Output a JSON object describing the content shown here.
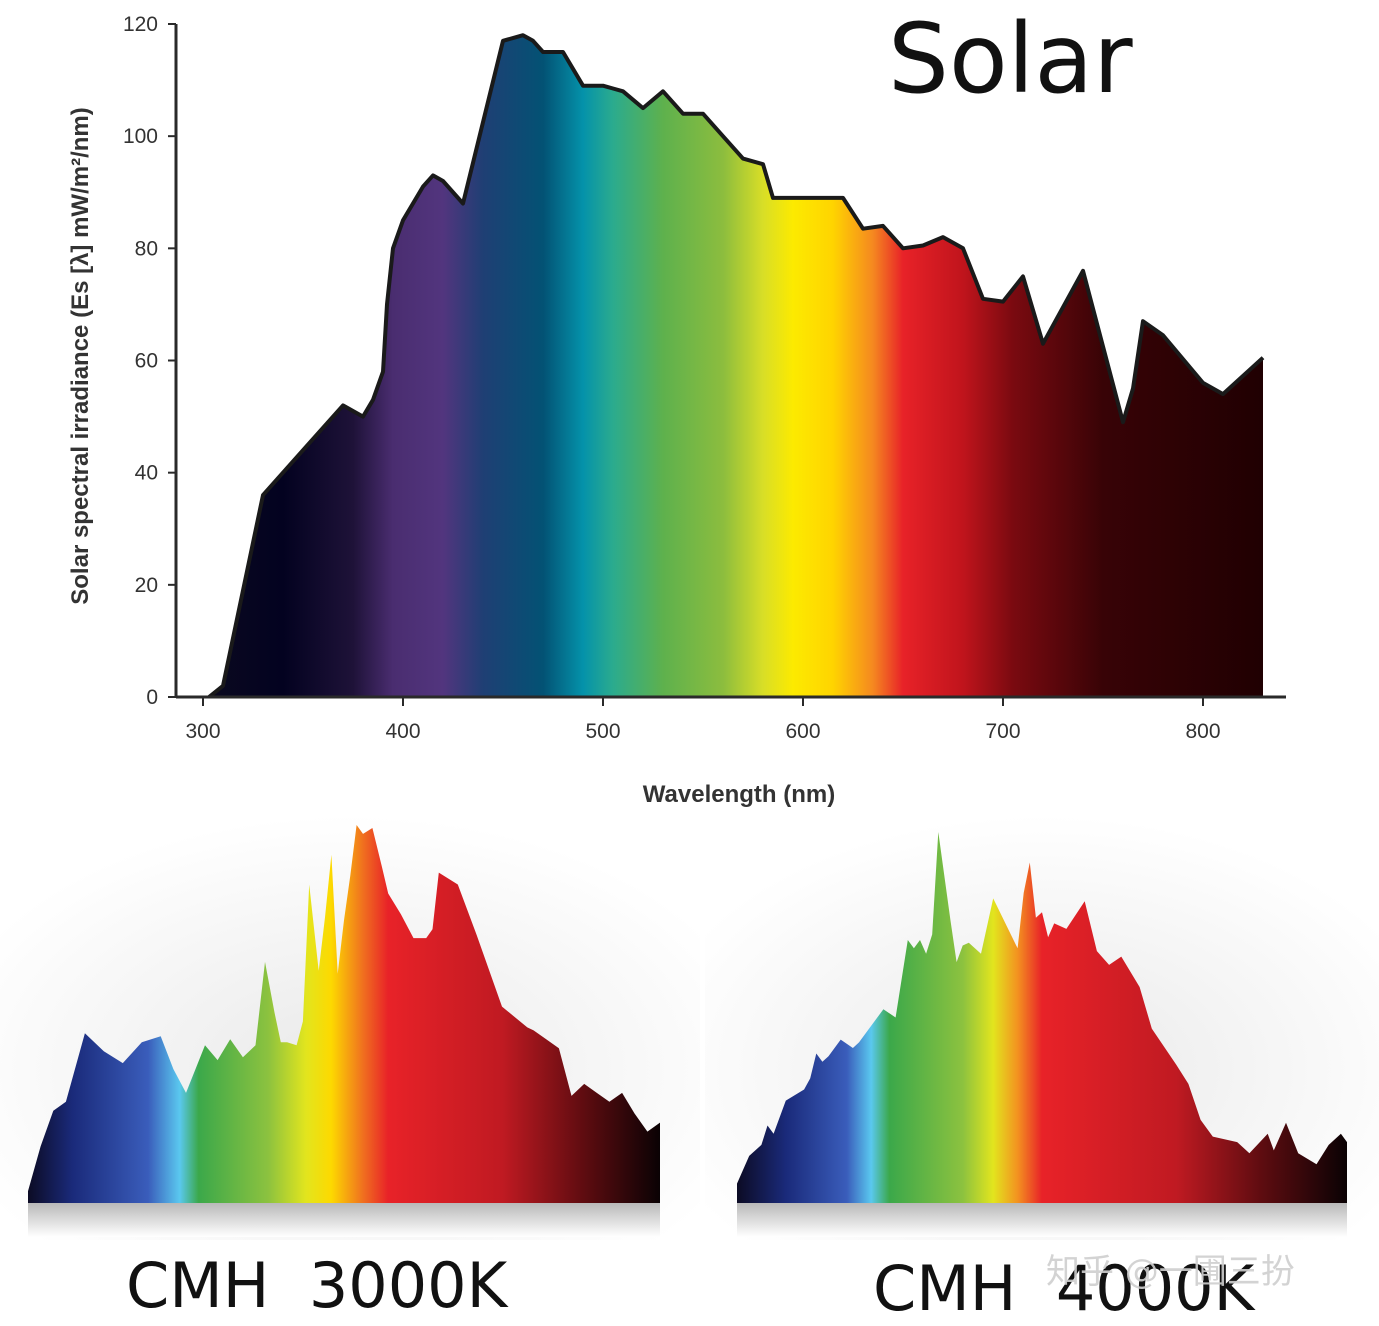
{
  "watermark": "知乎 @一圃三扮",
  "chart_data": [
    {
      "type": "area",
      "title": "Solar",
      "xlabel": "Wavelength (nm)",
      "ylabel": "Solar spectral irradiance  (Es [λ] mW/m²/nm)",
      "xlim": [
        290,
        840
      ],
      "ylim": [
        0,
        120
      ],
      "xticks": [
        300,
        400,
        500,
        600,
        700,
        800
      ],
      "yticks": [
        0,
        20,
        40,
        60,
        80,
        100,
        120
      ],
      "series": [
        {
          "name": "Solar",
          "x": [
            303,
            310,
            330,
            350,
            370,
            380,
            385,
            390,
            392,
            395,
            400,
            410,
            415,
            420,
            430,
            450,
            460,
            465,
            470,
            480,
            490,
            500,
            505,
            510,
            520,
            530,
            540,
            550,
            560,
            570,
            580,
            585,
            590,
            600,
            620,
            630,
            640,
            650,
            660,
            670,
            680,
            690,
            700,
            710,
            720,
            740,
            760,
            765,
            770,
            780,
            800,
            810,
            830
          ],
          "y": [
            0,
            2,
            36,
            44,
            52,
            50,
            53,
            58,
            70,
            80,
            85,
            91,
            93,
            92,
            88,
            117,
            118,
            117,
            115,
            115,
            109,
            109,
            108.5,
            108,
            105,
            108,
            104,
            104,
            100,
            96,
            95,
            89,
            89,
            89,
            89,
            83.5,
            84,
            80,
            80.5,
            82,
            80,
            71,
            70.5,
            75,
            63,
            76,
            49,
            55,
            67,
            64.5,
            56,
            54,
            60.5
          ]
        }
      ],
      "color_scale": [
        {
          "nm": 300,
          "color": "#0b0a1f"
        },
        {
          "nm": 340,
          "color": "#030220"
        },
        {
          "nm": 375,
          "color": "#1e1238"
        },
        {
          "nm": 395,
          "color": "#4a2d70"
        },
        {
          "nm": 420,
          "color": "#52357e"
        },
        {
          "nm": 440,
          "color": "#1f3f74"
        },
        {
          "nm": 470,
          "color": "#035274"
        },
        {
          "nm": 490,
          "color": "#0492aa"
        },
        {
          "nm": 505,
          "color": "#2bab8e"
        },
        {
          "nm": 530,
          "color": "#5eb14d"
        },
        {
          "nm": 560,
          "color": "#8cbd3e"
        },
        {
          "nm": 580,
          "color": "#d8de27"
        },
        {
          "nm": 595,
          "color": "#fcea00"
        },
        {
          "nm": 615,
          "color": "#ffd400"
        },
        {
          "nm": 635,
          "color": "#f58820"
        },
        {
          "nm": 650,
          "color": "#e82228"
        },
        {
          "nm": 680,
          "color": "#c0141c"
        },
        {
          "nm": 705,
          "color": "#7a0a10"
        },
        {
          "nm": 750,
          "color": "#380306"
        },
        {
          "nm": 830,
          "color": "#200002"
        }
      ]
    },
    {
      "type": "area",
      "title": "CMH  3000K",
      "series": [
        {
          "name": "CMH 3000K",
          "x": [
            0,
            2,
            4,
            6,
            9,
            12,
            15,
            18,
            21,
            23,
            25,
            28,
            30,
            32,
            34,
            36,
            37.5,
            39,
            40,
            41,
            42.5,
            43.5,
            44.5,
            46,
            47,
            48,
            49,
            50,
            51,
            52,
            53,
            54.5,
            56,
            57,
            59,
            61,
            63,
            64,
            65,
            68,
            71,
            75,
            79,
            80,
            82,
            84,
            86,
            88,
            90,
            92,
            94,
            96,
            98,
            100
          ],
          "y": [
            4,
            19,
            31,
            34,
            57,
            51,
            47,
            54,
            56,
            45,
            37,
            53,
            48,
            55,
            49,
            53,
            81,
            64,
            54,
            54,
            53,
            61,
            107,
            78,
            96,
            117,
            77,
            95,
            110,
            127,
            124,
            126,
            113,
            104,
            97,
            89,
            89,
            92,
            111,
            107,
            90,
            66,
            59,
            58,
            55,
            52,
            36,
            40,
            37,
            34,
            37,
            30,
            24,
            27
          ]
        }
      ],
      "color_scale": [
        {
          "pos": 0,
          "color": "#0c0b24"
        },
        {
          "pos": 7,
          "color": "#1a2a7a"
        },
        {
          "pos": 19,
          "color": "#3a5dbb"
        },
        {
          "pos": 24,
          "color": "#5ac8ef"
        },
        {
          "pos": 27,
          "color": "#3ba84a"
        },
        {
          "pos": 38,
          "color": "#8cc23f"
        },
        {
          "pos": 44,
          "color": "#e2e51e"
        },
        {
          "pos": 48,
          "color": "#fdd900"
        },
        {
          "pos": 53,
          "color": "#f0701f"
        },
        {
          "pos": 57,
          "color": "#e82228"
        },
        {
          "pos": 75,
          "color": "#c01a22"
        },
        {
          "pos": 88,
          "color": "#5e0c10"
        },
        {
          "pos": 100,
          "color": "#0a0204"
        }
      ]
    },
    {
      "type": "area",
      "title": "CMH  4000K",
      "series": [
        {
          "name": "CMH 4000K",
          "x": [
            0,
            2,
            4,
            5,
            6,
            8,
            11,
            12,
            13,
            14,
            15,
            17,
            19,
            20,
            22,
            24,
            26,
            28,
            29,
            30,
            31,
            32,
            33,
            35,
            36,
            37,
            38,
            40,
            42,
            44,
            46,
            47,
            48,
            49,
            50,
            51,
            52,
            54,
            57,
            59,
            61,
            63,
            66,
            68,
            72,
            74,
            76,
            78,
            82,
            84,
            87,
            88,
            90,
            92,
            95,
            97,
            99,
            100
          ],
          "y": [
            7,
            17,
            21,
            28,
            25,
            37,
            41,
            45,
            54,
            51,
            53,
            59,
            56,
            58,
            64,
            70,
            67,
            95,
            92,
            95,
            90,
            97,
            134,
            102,
            87,
            93,
            94,
            90,
            110,
            101,
            92,
            112,
            123,
            103,
            105,
            96,
            101,
            99,
            109,
            91,
            86,
            89,
            78,
            63,
            50,
            43,
            30,
            24,
            22,
            18,
            25,
            19,
            29,
            18,
            14,
            21,
            25,
            22
          ]
        }
      ],
      "color_scale": [
        {
          "pos": 0,
          "color": "#0c0b24"
        },
        {
          "pos": 8,
          "color": "#1a2a7a"
        },
        {
          "pos": 18,
          "color": "#3a5dbb"
        },
        {
          "pos": 22,
          "color": "#5ac8ef"
        },
        {
          "pos": 25,
          "color": "#3ba84a"
        },
        {
          "pos": 37,
          "color": "#8cc23f"
        },
        {
          "pos": 42,
          "color": "#e2e51e"
        },
        {
          "pos": 46,
          "color": "#f39220"
        },
        {
          "pos": 50,
          "color": "#e82228"
        },
        {
          "pos": 72,
          "color": "#c01a22"
        },
        {
          "pos": 86,
          "color": "#5e0c10"
        },
        {
          "pos": 100,
          "color": "#0a0204"
        }
      ]
    }
  ]
}
